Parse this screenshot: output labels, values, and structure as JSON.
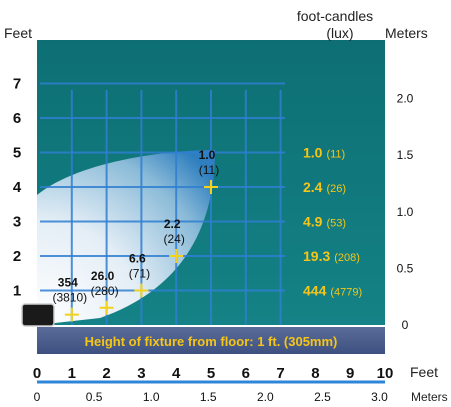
{
  "header": {
    "left_unit": "Feet",
    "fc_title_line1": "foot-candles",
    "fc_title_line2": "(lux)",
    "right_unit": "Meters"
  },
  "footer": {
    "caption": "Height of fixture from floor: 1 ft. (305mm)",
    "x_unit_feet": "Feet",
    "x_unit_meters": "Meters"
  },
  "colors": {
    "panel_teal": "#12777a",
    "spot_white": "#ffffff",
    "grid_blue": "#2f7fd1",
    "value_yellow": "#f5c518",
    "caption_bar": "#4a5d8a",
    "axis_line_blue": "#2e86d8",
    "marker": "#f2d21a"
  },
  "chart_data": {
    "type": "scatter",
    "title": "",
    "x_axis_feet": {
      "label": "Feet",
      "ticks": [
        "0",
        "1",
        "2",
        "3",
        "4",
        "5",
        "6",
        "7",
        "8",
        "9",
        "10"
      ],
      "range": [
        0,
        10
      ]
    },
    "x_axis_meters": {
      "label": "Meters",
      "ticks": [
        "0",
        "0.5",
        "1.0",
        "1.5",
        "2.0",
        "2.5",
        "3.0"
      ],
      "range": [
        0,
        3.0
      ]
    },
    "y_axis_feet": {
      "label": "Feet",
      "ticks": [
        "1",
        "2",
        "3",
        "4",
        "5",
        "6",
        "7"
      ],
      "range": [
        0,
        8
      ]
    },
    "y_axis_meters": {
      "label": "Meters",
      "ticks": [
        "0",
        "0.5",
        "1.0",
        "1.5",
        "2.0"
      ]
    },
    "points": [
      {
        "x": 1,
        "y": 0.3,
        "fc": "354",
        "lux": "(3810)"
      },
      {
        "x": 2,
        "y": 0.5,
        "fc": "26.0",
        "lux": "(280)"
      },
      {
        "x": 3,
        "y": 1.0,
        "fc": "6.6",
        "lux": "(71)"
      },
      {
        "x": 4,
        "y": 2.0,
        "fc": "2.2",
        "lux": "(24)"
      },
      {
        "x": 5,
        "y": 4.0,
        "fc": "1.0",
        "lux": "(11)"
      }
    ],
    "right_column": [
      {
        "y": 1,
        "fc": "444",
        "lux": "(4779)"
      },
      {
        "y": 2,
        "fc": "19.3",
        "lux": "(208)"
      },
      {
        "y": 3,
        "fc": "4.9",
        "lux": "(53)"
      },
      {
        "y": 4,
        "fc": "2.4",
        "lux": "(26)"
      },
      {
        "y": 5,
        "fc": "1.0",
        "lux": "(11)"
      }
    ],
    "grid": true
  }
}
